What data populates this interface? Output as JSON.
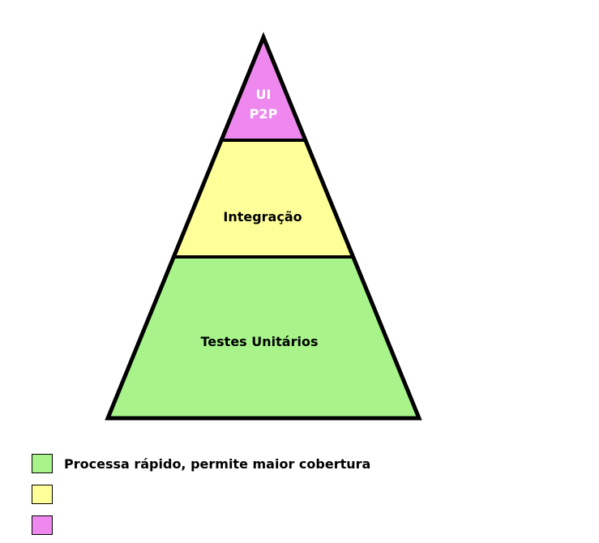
{
  "pyramid": {
    "tiers": [
      {
        "id": "ui",
        "lines": [
          "UI",
          "P2P"
        ],
        "fill": "#ee88ee",
        "text_color": "#ffffff"
      },
      {
        "id": "integration",
        "lines": [
          "Integração"
        ],
        "fill": "#ffff99",
        "text_color": "#000000"
      },
      {
        "id": "unit",
        "lines": [
          "Testes Unitários"
        ],
        "fill": "#a8f48a",
        "text_color": "#000000"
      }
    ],
    "outline_color": "#000000"
  },
  "legend": {
    "items": [
      {
        "color": "#a8f48a",
        "label": "Processa rápido, permite maior cobertura"
      },
      {
        "color": "#ffff99",
        "label": ""
      },
      {
        "color": "#ee88ee",
        "label": ""
      }
    ]
  }
}
